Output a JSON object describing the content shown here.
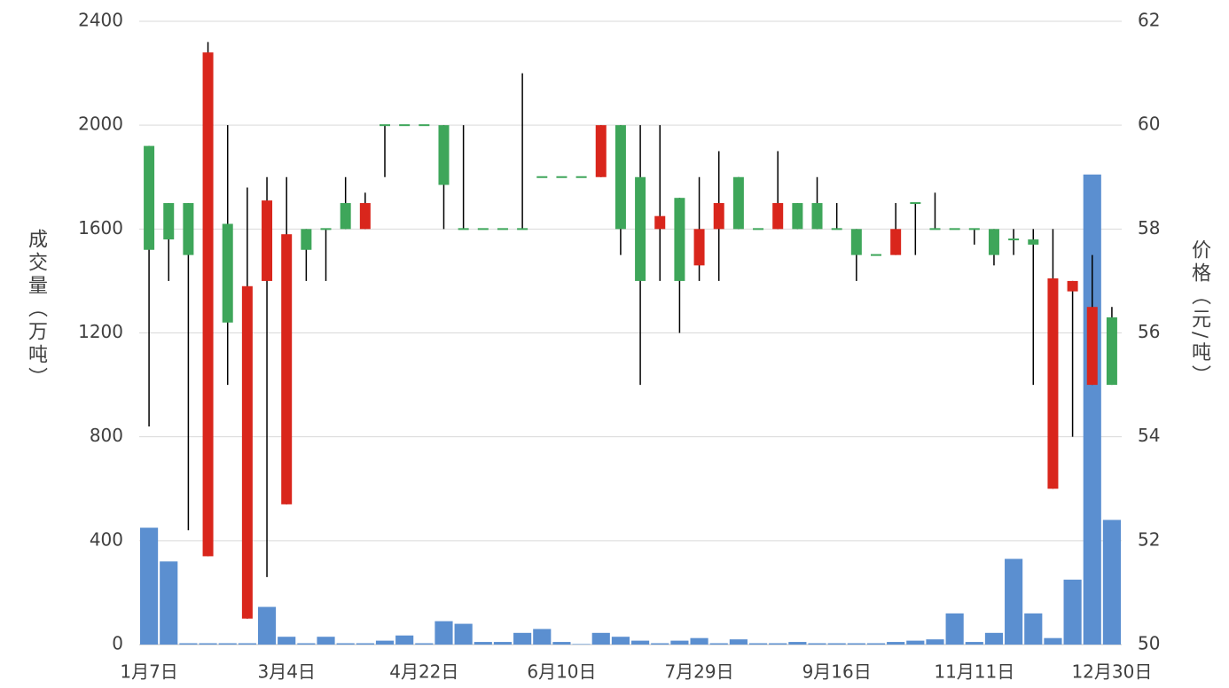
{
  "chart_data": {
    "type": "candlestick",
    "y_label": "成交量（万吨）",
    "y2_label": "价格（元/吨）",
    "categories": [
      "1月7日",
      null,
      null,
      null,
      null,
      null,
      null,
      "3月4日",
      null,
      null,
      null,
      null,
      null,
      null,
      "4月22日",
      null,
      null,
      null,
      null,
      null,
      null,
      "6月10日",
      null,
      null,
      null,
      null,
      null,
      null,
      "7月29日",
      null,
      null,
      null,
      null,
      null,
      null,
      "9月16日",
      null,
      null,
      null,
      null,
      null,
      null,
      "11月11日",
      null,
      null,
      null,
      null,
      null,
      null,
      "12月30日"
    ],
    "volume": [
      450,
      320,
      5,
      5,
      5,
      5,
      145,
      30,
      5,
      30,
      5,
      5,
      15,
      35,
      5,
      90,
      80,
      10,
      10,
      45,
      60,
      10,
      2,
      45,
      30,
      15,
      5,
      15,
      25,
      5,
      20,
      5,
      5,
      10,
      5,
      5,
      5,
      5,
      10,
      15,
      20,
      120,
      10,
      45,
      330,
      120,
      25,
      250,
      1810,
      480
    ],
    "open": [
      59.6,
      58.5,
      58.5,
      51.7,
      58.1,
      50.5,
      57.0,
      52.7,
      58.0,
      58.0,
      58.5,
      58.0,
      60.0,
      60,
      60,
      60.0,
      58,
      58,
      58,
      58,
      59,
      59,
      59,
      59,
      60,
      59,
      58,
      58.6,
      57.3,
      58,
      59,
      58,
      58,
      58.5,
      58.5,
      58,
      58,
      57.5,
      57.5,
      58.5,
      58,
      58,
      58,
      58,
      57.8,
      57.8,
      53,
      56.8,
      55,
      56.3
    ],
    "high": [
      59.6,
      58.5,
      58.5,
      61.6,
      60.0,
      58.8,
      59.0,
      59.0,
      58.0,
      58.0,
      59.0,
      58.7,
      60.0,
      60,
      60,
      60.0,
      60,
      58,
      58,
      61,
      59,
      59,
      59,
      60,
      60,
      60,
      60,
      58.6,
      59,
      59.5,
      59,
      58,
      59.5,
      58.5,
      59,
      58.5,
      58,
      57.5,
      58.5,
      58.5,
      58.7,
      58,
      58,
      58,
      58,
      58,
      58,
      57,
      57.5,
      56.5
    ],
    "low": [
      54.2,
      57.0,
      52.2,
      51.7,
      55.0,
      50.5,
      51.3,
      52.7,
      57.0,
      57.0,
      58.0,
      58.0,
      59.0,
      60,
      60,
      58.0,
      58,
      58,
      58,
      58,
      59,
      59,
      59,
      59,
      57.5,
      55,
      57,
      56,
      57,
      57,
      58,
      58,
      58,
      58,
      58,
      58,
      57,
      57.5,
      57.5,
      57.5,
      58,
      58,
      57.7,
      57.3,
      57.5,
      55,
      53,
      54,
      55,
      55
    ],
    "close": [
      57.6,
      57.8,
      57.5,
      61.4,
      56.2,
      56.9,
      58.55,
      57.9,
      57.6,
      58.0,
      58.0,
      58.5,
      60.0,
      60,
      60,
      58.85,
      58,
      58,
      58,
      58,
      59,
      59,
      59,
      60,
      58,
      57,
      58.25,
      57,
      58,
      58.5,
      58,
      58,
      58.5,
      58,
      58,
      58,
      57.5,
      57.5,
      58,
      58.5,
      58,
      58,
      58,
      57.5,
      57.8,
      57.7,
      57.05,
      57,
      56.5,
      55
    ],
    "up_color": "#d9261c",
    "down_color": "#3ea65a",
    "volume_color": "#5b8fd0",
    "ylim": [
      0,
      2400
    ],
    "yticks": [
      0,
      400,
      800,
      1200,
      1600,
      2000,
      2400
    ],
    "y2lim": [
      50,
      62
    ],
    "y2ticks": [
      50,
      52,
      54,
      56,
      58,
      60,
      62
    ],
    "grid": true
  }
}
